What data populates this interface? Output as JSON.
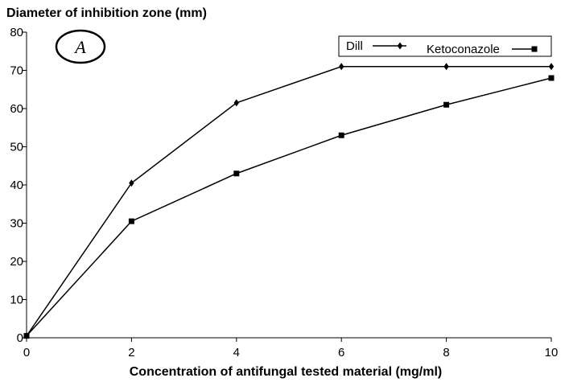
{
  "chart_data": {
    "type": "line",
    "ylabel": "Diameter of inhibition zone (mm)",
    "xlabel": "Concentration of antifungal tested material (mg/ml)",
    "panel_label": "A",
    "xlim": [
      0,
      10
    ],
    "ylim": [
      0,
      80
    ],
    "x_ticks": [
      "0",
      "2",
      "4",
      "6",
      "8",
      "10"
    ],
    "y_ticks": [
      "0",
      "10",
      "20",
      "30",
      "40",
      "50",
      "60",
      "70",
      "80"
    ],
    "grid": false,
    "legend_position": "top-right",
    "series": [
      {
        "name": "Dill",
        "marker": "diamond",
        "color": "#000000",
        "x": [
          0,
          2,
          4,
          6,
          8,
          10
        ],
        "y": [
          0.5,
          40.5,
          61.5,
          71,
          71,
          71
        ]
      },
      {
        "name": "Ketoconazole",
        "marker": "square",
        "color": "#000000",
        "x": [
          0,
          2,
          4,
          6,
          8,
          10
        ],
        "y": [
          0.5,
          30.5,
          43,
          53,
          61,
          68
        ]
      }
    ]
  }
}
